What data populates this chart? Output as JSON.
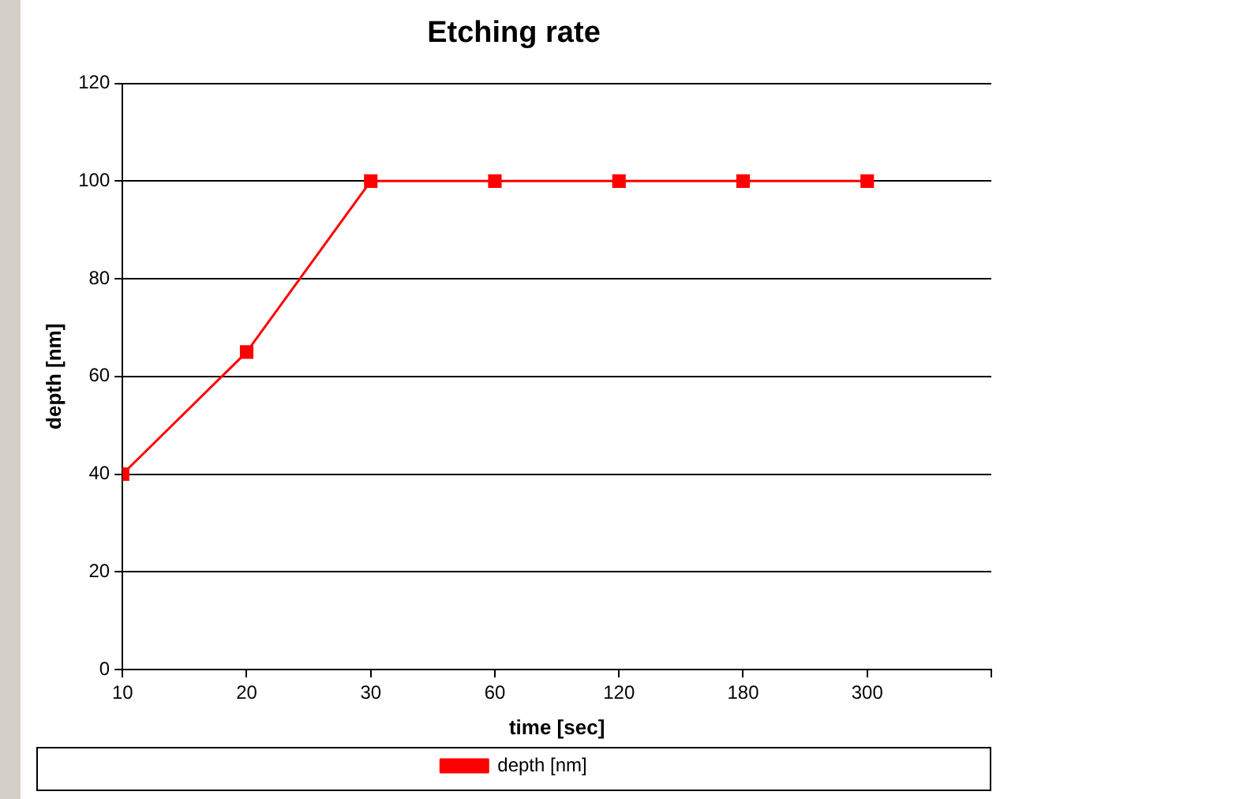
{
  "chart_data": {
    "type": "line",
    "title": "Etching rate",
    "xlabel": "time [sec]",
    "ylabel": "depth [nm]",
    "categories": [
      "10",
      "20",
      "30",
      "60",
      "120",
      "180",
      "300"
    ],
    "series": [
      {
        "name": "depth [nm]",
        "color": "#ff0000",
        "values": [
          40,
          65,
          100,
          100,
          100,
          100,
          100
        ]
      }
    ],
    "ylim": [
      0,
      120
    ],
    "yticks": [
      0,
      20,
      40,
      60,
      80,
      100,
      120
    ],
    "grid": "y",
    "legend": "bottom",
    "marker": "square",
    "line_style": "solid"
  }
}
